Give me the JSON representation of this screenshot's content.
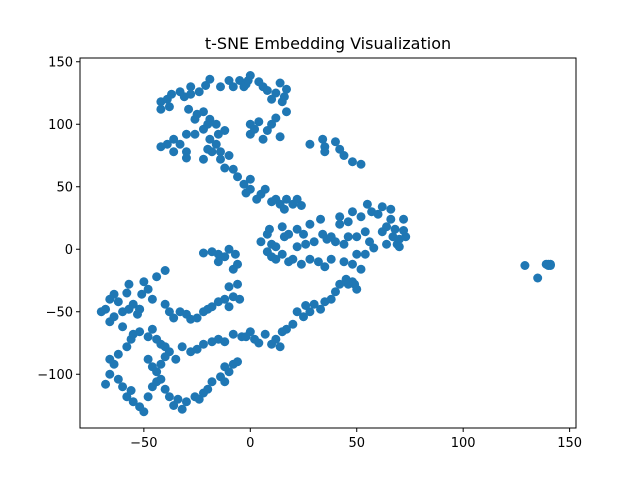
{
  "chart_data": {
    "type": "scatter",
    "title": "t-SNE Embedding Visualization",
    "xlabel": "",
    "ylabel": "",
    "xlim": [
      -80,
      153
    ],
    "ylim": [
      -143,
      153
    ],
    "xticks": [
      -50,
      0,
      50,
      100,
      150
    ],
    "yticks": [
      -100,
      -50,
      0,
      50,
      100,
      150
    ],
    "xtick_labels": [
      "−50",
      "0",
      "50",
      "100",
      "150"
    ],
    "ytick_labels": [
      "−100",
      "−50",
      "0",
      "50",
      "100",
      "150"
    ],
    "grid": false,
    "legend": false,
    "colors": {
      "marker": "#1f77b4",
      "axes": "#000000",
      "background": "#ffffff"
    },
    "series": [
      {
        "points": [
          [
            -42,
            112
          ],
          [
            -42,
            118
          ],
          [
            -39,
            120
          ],
          [
            -38,
            114
          ],
          [
            -37,
            124
          ],
          [
            -33,
            126
          ],
          [
            -31,
            122
          ],
          [
            -28,
            124
          ],
          [
            -28,
            130
          ],
          [
            -24,
            126
          ],
          [
            -21,
            131
          ],
          [
            -19,
            136
          ],
          [
            -14,
            130
          ],
          [
            -10,
            135
          ],
          [
            -8,
            130
          ],
          [
            -5,
            135
          ],
          [
            -3,
            130
          ],
          [
            -2,
            132
          ],
          [
            -1,
            135
          ],
          [
            0,
            139
          ],
          [
            4,
            134
          ],
          [
            6,
            130
          ],
          [
            8,
            127
          ],
          [
            10,
            120
          ],
          [
            12,
            125
          ],
          [
            14,
            133
          ],
          [
            15,
            118
          ],
          [
            16,
            122
          ],
          [
            17,
            110
          ],
          [
            17,
            128
          ],
          [
            -29,
            112
          ],
          [
            -25,
            108
          ],
          [
            -22,
            110
          ],
          [
            -19,
            104
          ],
          [
            -16,
            100
          ],
          [
            -20,
            100
          ],
          [
            -26,
            104
          ],
          [
            -22,
            96
          ],
          [
            -26,
            92
          ],
          [
            -30,
            92
          ],
          [
            -36,
            88
          ],
          [
            -33,
            84
          ],
          [
            -39,
            84
          ],
          [
            -36,
            78
          ],
          [
            -42,
            82
          ],
          [
            -30,
            78
          ],
          [
            -30,
            73
          ],
          [
            -22,
            72
          ],
          [
            -18,
            78
          ],
          [
            -19,
            88
          ],
          [
            -15,
            92
          ],
          [
            -12,
            95
          ],
          [
            -16,
            84
          ],
          [
            -20,
            80
          ],
          [
            -14,
            78
          ],
          [
            -14,
            72
          ],
          [
            -12,
            65
          ],
          [
            -10,
            75
          ],
          [
            -8,
            64
          ],
          [
            -6,
            58
          ],
          [
            -3,
            52
          ],
          [
            -2,
            45
          ],
          [
            0,
            56
          ],
          [
            0,
            48
          ],
          [
            3,
            40
          ],
          [
            5,
            44
          ],
          [
            7,
            48
          ],
          [
            10,
            38
          ],
          [
            12,
            40
          ],
          [
            14,
            36
          ],
          [
            16,
            32
          ],
          [
            17,
            40
          ],
          [
            20,
            36
          ],
          [
            22,
            40
          ],
          [
            24,
            35
          ],
          [
            0,
            92
          ],
          [
            0,
            100
          ],
          [
            2,
            96
          ],
          [
            4,
            102
          ],
          [
            6,
            88
          ],
          [
            8,
            95
          ],
          [
            10,
            100
          ],
          [
            12,
            105
          ],
          [
            14,
            90
          ],
          [
            28,
            84
          ],
          [
            34,
            88
          ],
          [
            35,
            82
          ],
          [
            35,
            78
          ],
          [
            40,
            86
          ],
          [
            42,
            80
          ],
          [
            44,
            75
          ],
          [
            48,
            70
          ],
          [
            52,
            68
          ],
          [
            5,
            6
          ],
          [
            8,
            -2
          ],
          [
            8,
            12
          ],
          [
            9,
            16
          ],
          [
            10,
            4
          ],
          [
            10,
            -6
          ],
          [
            12,
            -8
          ],
          [
            12,
            2
          ],
          [
            15,
            -4
          ],
          [
            15,
            18
          ],
          [
            16,
            10
          ],
          [
            18,
            12
          ],
          [
            18,
            -10
          ],
          [
            20,
            -8
          ],
          [
            22,
            16
          ],
          [
            22,
            2
          ],
          [
            24,
            -12
          ],
          [
            25,
            12
          ],
          [
            26,
            4
          ],
          [
            28,
            -8
          ],
          [
            28,
            20
          ],
          [
            30,
            6
          ],
          [
            32,
            -10
          ],
          [
            33,
            24
          ],
          [
            34,
            12
          ],
          [
            35,
            -14
          ],
          [
            36,
            8
          ],
          [
            38,
            10
          ],
          [
            38,
            -8
          ],
          [
            40,
            6
          ],
          [
            42,
            20
          ],
          [
            42,
            26
          ],
          [
            44,
            -10
          ],
          [
            44,
            4
          ],
          [
            46,
            22
          ],
          [
            46,
            10
          ],
          [
            48,
            -12
          ],
          [
            48,
            -26
          ],
          [
            48,
            30
          ],
          [
            50,
            10
          ],
          [
            50,
            -4
          ],
          [
            52,
            26
          ],
          [
            52,
            -16
          ],
          [
            54,
            14
          ],
          [
            54,
            -4
          ],
          [
            55,
            36
          ],
          [
            56,
            6
          ],
          [
            57,
            30
          ],
          [
            58,
            1
          ],
          [
            60,
            28
          ],
          [
            62,
            14
          ],
          [
            62,
            34
          ],
          [
            64,
            4
          ],
          [
            64,
            18
          ],
          [
            66,
            32
          ],
          [
            66,
            24
          ],
          [
            67,
            10
          ],
          [
            68,
            16
          ],
          [
            69,
            4
          ],
          [
            70,
            8
          ],
          [
            70,
            2
          ],
          [
            72,
            24
          ],
          [
            72,
            15
          ],
          [
            73,
            10
          ],
          [
            49,
            -28
          ],
          [
            50,
            -32
          ],
          [
            46,
            -28
          ],
          [
            45,
            -24
          ],
          [
            42,
            -28
          ],
          [
            40,
            -34
          ],
          [
            38,
            -40
          ],
          [
            35,
            -42
          ],
          [
            33,
            -48
          ],
          [
            30,
            -44
          ],
          [
            28,
            -50
          ],
          [
            26,
            -45
          ],
          [
            25,
            -54
          ],
          [
            22,
            -50
          ],
          [
            20,
            -60
          ],
          [
            17,
            -64
          ],
          [
            15,
            -66
          ],
          [
            14,
            -78
          ],
          [
            12,
            -72
          ],
          [
            10,
            -76
          ],
          [
            7,
            -68
          ],
          [
            4,
            -75
          ],
          [
            2,
            -72
          ],
          [
            0,
            -66
          ],
          [
            -4,
            -70
          ],
          [
            -8,
            -68
          ],
          [
            -2,
            -70
          ],
          [
            -68,
            -48
          ],
          [
            -66,
            -40
          ],
          [
            -64,
            -36
          ],
          [
            -62,
            -42
          ],
          [
            -60,
            -50
          ],
          [
            -58,
            -35
          ],
          [
            -57,
            -28
          ],
          [
            -55,
            -44
          ],
          [
            -52,
            -48
          ],
          [
            -51,
            -36
          ],
          [
            -50,
            -26
          ],
          [
            -48,
            -32
          ],
          [
            -46,
            -40
          ],
          [
            -44,
            -22
          ],
          [
            -40,
            -17
          ],
          [
            -40,
            -44
          ],
          [
            -38,
            -50
          ],
          [
            -36,
            -55
          ],
          [
            -33,
            -50
          ],
          [
            -30,
            -52
          ],
          [
            -28,
            -56
          ],
          [
            -25,
            -55
          ],
          [
            -22,
            -50
          ],
          [
            -20,
            -48
          ],
          [
            -18,
            -46
          ],
          [
            -15,
            -42
          ],
          [
            -12,
            -40
          ],
          [
            -10,
            -30
          ],
          [
            -10,
            -46
          ],
          [
            -8,
            -38
          ],
          [
            -5,
            -40
          ],
          [
            -6,
            -28
          ],
          [
            -8,
            -16
          ],
          [
            -6,
            -12
          ],
          [
            -7,
            -4
          ],
          [
            -10,
            0
          ],
          [
            -12,
            -6
          ],
          [
            -15,
            -4
          ],
          [
            -18,
            -2
          ],
          [
            -22,
            -3
          ],
          [
            -15,
            -10
          ],
          [
            -70,
            -50
          ],
          [
            -66,
            -58
          ],
          [
            -64,
            -54
          ],
          [
            -60,
            -62
          ],
          [
            -57,
            -48
          ],
          [
            -53,
            -52
          ],
          [
            -52,
            -48
          ],
          [
            -56,
            -72
          ],
          [
            -58,
            -78
          ],
          [
            -62,
            -84
          ],
          [
            -64,
            -92
          ],
          [
            -66,
            -100
          ],
          [
            -68,
            -108
          ],
          [
            -66,
            -88
          ],
          [
            -62,
            -104
          ],
          [
            -60,
            -110
          ],
          [
            -58,
            -118
          ],
          [
            -56,
            -113
          ],
          [
            -55,
            -122
          ],
          [
            -52,
            -126
          ],
          [
            -50,
            -130
          ],
          [
            -48,
            -118
          ],
          [
            -46,
            -110
          ],
          [
            -44,
            -106
          ],
          [
            -42,
            -104
          ],
          [
            -40,
            -112
          ],
          [
            -38,
            -118
          ],
          [
            -36,
            -125
          ],
          [
            -34,
            -120
          ],
          [
            -32,
            -128
          ],
          [
            -30,
            -122
          ],
          [
            -26,
            -118
          ],
          [
            -24,
            -120
          ],
          [
            -22,
            -115
          ],
          [
            -20,
            -112
          ],
          [
            -18,
            -106
          ],
          [
            -14,
            -102
          ],
          [
            -12,
            -106
          ],
          [
            -12,
            -94
          ],
          [
            -10,
            -98
          ],
          [
            -8,
            -92
          ],
          [
            -6,
            -90
          ],
          [
            -48,
            -88
          ],
          [
            -46,
            -94
          ],
          [
            -44,
            -98
          ],
          [
            -42,
            -92
          ],
          [
            -40,
            -86
          ],
          [
            -38,
            -82
          ],
          [
            -35,
            -88
          ],
          [
            -32,
            -78
          ],
          [
            -28,
            -82
          ],
          [
            -25,
            -80
          ],
          [
            -22,
            -76
          ],
          [
            -18,
            -74
          ],
          [
            -15,
            -72
          ],
          [
            -12,
            -74
          ],
          [
            -55,
            -68
          ],
          [
            -52,
            -66
          ],
          [
            -48,
            -70
          ],
          [
            -46,
            -64
          ],
          [
            -44,
            -72
          ],
          [
            -42,
            -76
          ],
          [
            -40,
            -78
          ],
          [
            129,
            -13
          ],
          [
            135,
            -23
          ],
          [
            140,
            -12
          ],
          [
            141,
            -12
          ],
          [
            140,
            -13
          ],
          [
            141,
            -13
          ],
          [
            139,
            -12
          ]
        ]
      }
    ]
  }
}
